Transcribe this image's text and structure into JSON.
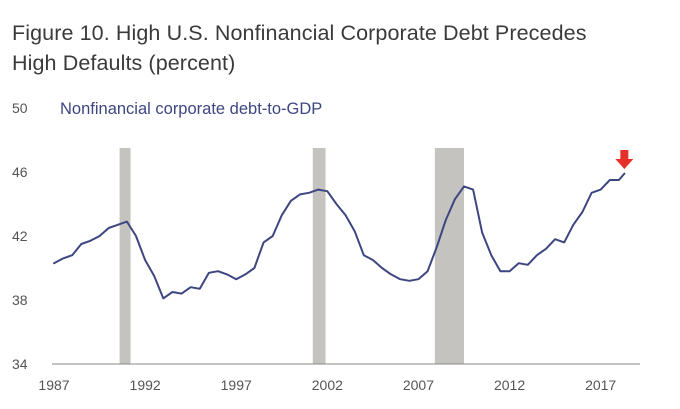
{
  "title_line1": "Figure 10. High U.S. Nonfinancial Corporate Debt Precedes",
  "title_line2": "High Defaults (percent)",
  "chart_data": {
    "type": "line",
    "series": [
      {
        "name": "Nonfinancial corporate debt-to-GDP",
        "color": "#3d4680",
        "points": [
          [
            1987.0,
            40.3
          ],
          [
            1987.5,
            40.6
          ],
          [
            1988.0,
            40.8
          ],
          [
            1988.5,
            41.5
          ],
          [
            1989.0,
            41.7
          ],
          [
            1989.5,
            42.0
          ],
          [
            1990.0,
            42.5
          ],
          [
            1990.5,
            42.7
          ],
          [
            1991.0,
            42.9
          ],
          [
            1991.5,
            42.0
          ],
          [
            1992.0,
            40.5
          ],
          [
            1992.5,
            39.5
          ],
          [
            1993.0,
            38.1
          ],
          [
            1993.5,
            38.5
          ],
          [
            1994.0,
            38.4
          ],
          [
            1994.5,
            38.8
          ],
          [
            1995.0,
            38.7
          ],
          [
            1995.5,
            39.7
          ],
          [
            1996.0,
            39.8
          ],
          [
            1996.5,
            39.6
          ],
          [
            1997.0,
            39.3
          ],
          [
            1997.5,
            39.6
          ],
          [
            1998.0,
            40.0
          ],
          [
            1998.5,
            41.6
          ],
          [
            1999.0,
            42.0
          ],
          [
            1999.5,
            43.3
          ],
          [
            2000.0,
            44.2
          ],
          [
            2000.5,
            44.6
          ],
          [
            2001.0,
            44.7
          ],
          [
            2001.5,
            44.9
          ],
          [
            2002.0,
            44.8
          ],
          [
            2002.5,
            44.0
          ],
          [
            2003.0,
            43.3
          ],
          [
            2003.5,
            42.3
          ],
          [
            2004.0,
            40.8
          ],
          [
            2004.5,
            40.5
          ],
          [
            2005.0,
            40.0
          ],
          [
            2005.5,
            39.6
          ],
          [
            2006.0,
            39.3
          ],
          [
            2006.5,
            39.2
          ],
          [
            2007.0,
            39.3
          ],
          [
            2007.5,
            39.8
          ],
          [
            2008.0,
            41.3
          ],
          [
            2008.5,
            43.0
          ],
          [
            2009.0,
            44.3
          ],
          [
            2009.5,
            45.1
          ],
          [
            2010.0,
            44.9
          ],
          [
            2010.5,
            42.2
          ],
          [
            2011.0,
            40.8
          ],
          [
            2011.5,
            39.8
          ],
          [
            2012.0,
            39.8
          ],
          [
            2012.5,
            40.3
          ],
          [
            2013.0,
            40.2
          ],
          [
            2013.5,
            40.8
          ],
          [
            2014.0,
            41.2
          ],
          [
            2014.5,
            41.8
          ],
          [
            2015.0,
            41.6
          ],
          [
            2015.5,
            42.7
          ],
          [
            2016.0,
            43.5
          ],
          [
            2016.5,
            44.7
          ],
          [
            2017.0,
            44.9
          ],
          [
            2017.5,
            45.5
          ],
          [
            2018.0,
            45.5
          ],
          [
            2018.3,
            45.9
          ]
        ]
      }
    ],
    "recessions": [
      [
        1990.6,
        1991.2
      ],
      [
        2001.2,
        2001.9
      ],
      [
        2007.9,
        2009.5
      ]
    ],
    "recession_color": "#c4c3bf",
    "y_ticks": [
      "50",
      "46",
      "42",
      "38",
      "34"
    ],
    "x_ticks": [
      "1987",
      "1992",
      "1997",
      "2002",
      "2007",
      "2012",
      "2017"
    ],
    "ylim": [
      34,
      50
    ],
    "xlim": [
      1987,
      2018.5
    ],
    "grid": false,
    "marker": {
      "type": "down-arrow",
      "x": 2018.3,
      "y": 46.0,
      "color": "#e5312a"
    }
  }
}
